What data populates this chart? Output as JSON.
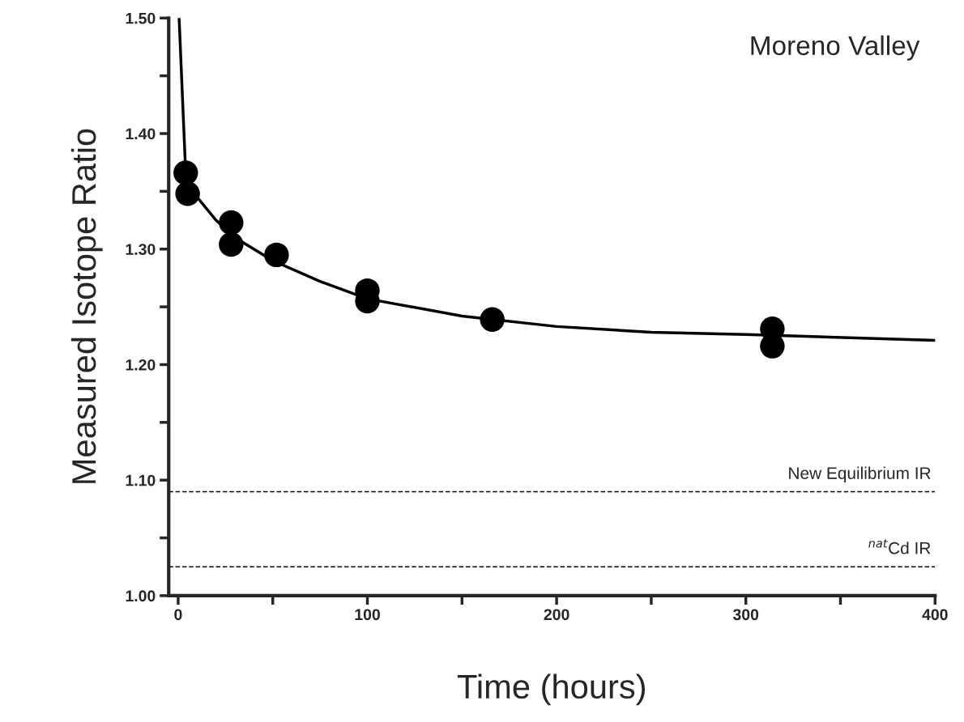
{
  "chart_data": {
    "type": "scatter",
    "xlabel": "Time (hours)",
    "ylabel": "Measured Isotope Ratio",
    "annotations": [
      "Moreno Valley"
    ],
    "x": [
      4,
      5,
      28,
      28,
      52,
      100,
      100,
      166,
      314,
      314
    ],
    "series": [
      {
        "type": "scatter",
        "color": "#000000",
        "marker": "circle",
        "values": [
          1.366,
          1.348,
          1.323,
          1.304,
          1.295,
          1.264,
          1.255,
          1.239,
          1.231,
          1.216
        ]
      },
      {
        "type": "line",
        "color": "#000000",
        "marker": "none",
        "line_style": "solid",
        "x": [
          0.5,
          4,
          10,
          20,
          30,
          50,
          75,
          100,
          150,
          200,
          250,
          300,
          400
        ],
        "values": [
          1.5,
          1.365,
          1.345,
          1.325,
          1.31,
          1.29,
          1.272,
          1.257,
          1.242,
          1.233,
          1.228,
          1.226,
          1.221
        ]
      }
    ],
    "ref_lines": [
      {
        "axis": "y",
        "value": 1.09,
        "label": "New Equilibrium IR",
        "line_style": "dashed",
        "color": "#000000"
      },
      {
        "axis": "y",
        "value": 1.025,
        "label": "$^{nat}$Cd IR",
        "line_style": "dashed",
        "color": "#000000"
      }
    ],
    "xlim": [
      -5,
      400
    ],
    "ylim": [
      1.0,
      1.5
    ],
    "xticks": [
      0,
      {
        "value": 50,
        "label": null
      },
      100,
      {
        "value": 150,
        "label": null
      },
      200,
      {
        "value": 250,
        "label": null
      },
      300,
      {
        "value": 350,
        "label": null
      },
      400
    ],
    "yticks": [
      {
        "value": 1.0,
        "label": "1.00"
      },
      {
        "value": 1.05,
        "label": null
      },
      {
        "value": 1.1,
        "label": "1.10"
      },
      {
        "value": 1.15,
        "label": null
      },
      {
        "value": 1.2,
        "label": "1.20"
      },
      {
        "value": 1.25,
        "label": null
      },
      {
        "value": 1.3,
        "label": "1.30"
      },
      {
        "value": 1.35,
        "label": null
      },
      {
        "value": 1.4,
        "label": "1.40"
      },
      {
        "value": 1.45,
        "label": null
      },
      {
        "value": 1.5,
        "label": "1.50"
      }
    ],
    "grid": false,
    "legend": false
  }
}
